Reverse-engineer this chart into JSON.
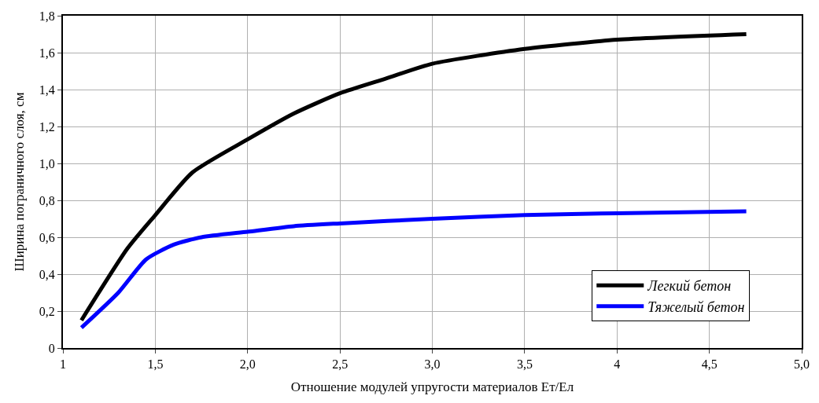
{
  "chart_data": {
    "type": "line",
    "xlabel": "Отношение модулей упругости материалов Ет/Ел",
    "ylabel": "Ширина пограничного слоя, см",
    "xlim": [
      1,
      5
    ],
    "xticks": [
      1,
      {
        "value": 1.5,
        "label": "1,5"
      },
      {
        "value": 2,
        "label": "2,0"
      },
      {
        "value": 2.5,
        "label": "2,5"
      },
      {
        "value": 3,
        "label": "3,0"
      },
      {
        "value": 3.5,
        "label": "3,5"
      },
      4,
      {
        "value": 4.5,
        "label": "4,5"
      },
      {
        "value": 5,
        "label": "5,0"
      }
    ],
    "ylim": [
      0,
      1.8
    ],
    "yticks": [
      0,
      {
        "value": 0.2,
        "label": "0,2"
      },
      {
        "value": 0.4,
        "label": "0,4"
      },
      {
        "value": 0.6,
        "label": "0,6"
      },
      {
        "value": 0.8,
        "label": "0,8"
      },
      {
        "value": 1.0,
        "label": "1,0"
      },
      {
        "value": 1.2,
        "label": "1,2"
      },
      {
        "value": 1.4,
        "label": "1,4"
      },
      {
        "value": 1.6,
        "label": "1,6"
      },
      {
        "value": 1.8,
        "label": "1,8"
      }
    ],
    "grid": true,
    "legend": "bottom right",
    "marker": "none",
    "line_style": "solid",
    "series": [
      {
        "name": "Легкий бетон",
        "color": "#000000",
        "x": [
          1.1,
          1.35,
          1.5,
          1.7,
          2.0,
          2.25,
          2.5,
          2.75,
          3.0,
          3.5,
          4.0,
          4.7
        ],
        "values": [
          0.15,
          0.54,
          0.72,
          0.95,
          1.13,
          1.27,
          1.38,
          1.46,
          1.54,
          1.62,
          1.67,
          1.7
        ]
      },
      {
        "name": "Тяжелый бетон",
        "color": "#0000ff",
        "x": [
          1.1,
          1.3,
          1.45,
          1.6,
          1.75,
          2.0,
          2.25,
          2.5,
          3.0,
          3.5,
          4.0,
          4.7
        ],
        "values": [
          0.11,
          0.3,
          0.48,
          0.56,
          0.6,
          0.63,
          0.66,
          0.675,
          0.7,
          0.72,
          0.73,
          0.74
        ]
      }
    ]
  }
}
